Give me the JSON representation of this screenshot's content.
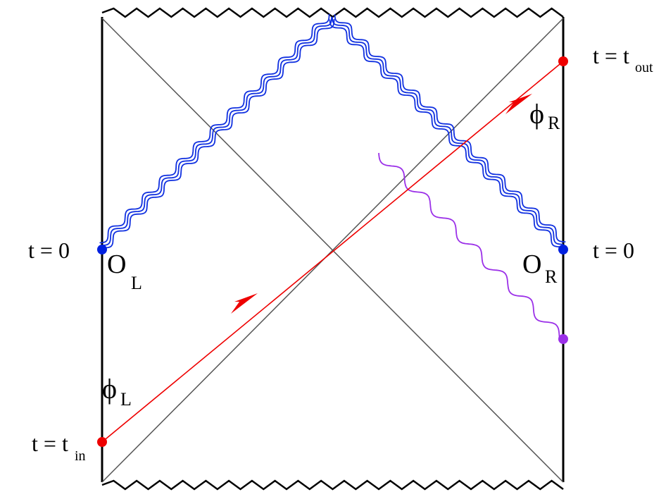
{
  "labels": {
    "left_t0": {
      "text": "t = 0"
    },
    "right_t0": {
      "text": "t = 0"
    },
    "t_out": {
      "text": "t = t",
      "sub": "out"
    },
    "t_in": {
      "text": "t = t",
      "sub": "in"
    },
    "op_left": {
      "text": "O",
      "sub": "L"
    },
    "op_right": {
      "text": "O",
      "sub": "R"
    },
    "phi_right": {
      "text": "ϕ",
      "sub": "R"
    },
    "phi_left": {
      "text": "ϕ",
      "sub": "L"
    }
  }
}
